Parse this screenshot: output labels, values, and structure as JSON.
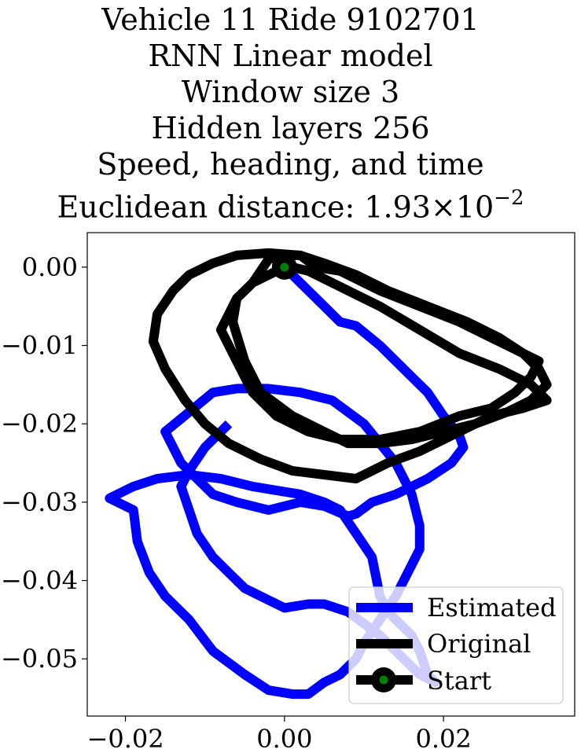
{
  "chart_data": {
    "type": "line",
    "title_lines": [
      "Vehicle 11 Ride 9102701",
      "RNN Linear model",
      "Window size 3",
      "Hidden layers 256",
      "Speed, heading, and time"
    ],
    "title_distance_prefix": "Euclidean distance: 1.93",
    "title_distance_times": "×",
    "title_distance_base": "10",
    "title_distance_exponent": "−2",
    "xlim": [
      -0.0248,
      0.0365
    ],
    "ylim": [
      -0.0573,
      0.0044
    ],
    "xticks": [
      -0.02,
      0.0,
      0.02
    ],
    "xtick_labels": [
      "−0.02",
      "0.00",
      "0.02"
    ],
    "yticks": [
      0.0,
      -0.01,
      -0.02,
      -0.03,
      -0.04,
      -0.05
    ],
    "ytick_labels": [
      "0.00",
      "−0.01",
      "−0.02",
      "−0.03",
      "−0.04",
      "−0.05"
    ],
    "grid": false,
    "legend_position": "lower right",
    "colors": {
      "estimated": "#0000ff",
      "original": "#000000",
      "start_marker": "#000000",
      "start_marker_center": "#008000"
    },
    "series": [
      {
        "name": "Estimated",
        "x": [
          0.0,
          0.004,
          0.007,
          0.009,
          0.012,
          0.015,
          0.018,
          0.02,
          0.022,
          0.0225,
          0.021,
          0.018,
          0.014,
          0.011,
          0.009,
          0.008,
          0.005,
          0.002,
          -0.002,
          -0.006,
          -0.009,
          -0.011,
          -0.013,
          -0.015,
          -0.012,
          -0.009,
          -0.006,
          -0.002,
          0.002,
          0.006,
          0.01,
          0.014,
          0.016,
          0.017,
          0.017,
          0.016,
          0.014,
          0.012,
          0.01,
          0.009,
          0.008,
          0.007,
          0.005,
          0.003,
          0.001,
          -0.002,
          -0.005,
          -0.009,
          -0.012,
          -0.015,
          -0.017,
          -0.0185,
          -0.019,
          -0.021,
          -0.022,
          -0.019,
          -0.016,
          -0.012,
          -0.008,
          -0.004,
          -0.001,
          0.002,
          0.005,
          0.007,
          0.009,
          0.011,
          0.012,
          0.013,
          0.014,
          0.015,
          0.016,
          0.017,
          0.018,
          0.019,
          0.017,
          0.015,
          0.012,
          0.008,
          0.005,
          0.003,
          0.0,
          -0.003,
          -0.005,
          -0.007,
          -0.009,
          -0.011,
          -0.012,
          -0.013,
          -0.012,
          -0.01,
          -0.007
        ],
        "y": [
          0.0,
          -0.004,
          -0.007,
          -0.0075,
          -0.01,
          -0.013,
          -0.016,
          -0.019,
          -0.0215,
          -0.023,
          -0.025,
          -0.027,
          -0.029,
          -0.03,
          -0.0315,
          -0.0318,
          -0.0305,
          -0.03,
          -0.031,
          -0.03,
          -0.029,
          -0.027,
          -0.025,
          -0.021,
          -0.0185,
          -0.016,
          -0.0155,
          -0.0155,
          -0.016,
          -0.017,
          -0.02,
          -0.025,
          -0.029,
          -0.033,
          -0.036,
          -0.038,
          -0.042,
          -0.045,
          -0.048,
          -0.05,
          -0.051,
          -0.052,
          -0.053,
          -0.0545,
          -0.0545,
          -0.054,
          -0.052,
          -0.049,
          -0.045,
          -0.042,
          -0.039,
          -0.035,
          -0.031,
          -0.03,
          -0.0295,
          -0.028,
          -0.027,
          -0.0265,
          -0.027,
          -0.028,
          -0.0285,
          -0.029,
          -0.03,
          -0.031,
          -0.034,
          -0.037,
          -0.042,
          -0.044,
          -0.045,
          -0.046,
          -0.047,
          -0.049,
          -0.052,
          -0.053,
          -0.052,
          -0.05,
          -0.047,
          -0.044,
          -0.043,
          -0.043,
          -0.0435,
          -0.042,
          -0.041,
          -0.039,
          -0.037,
          -0.034,
          -0.031,
          -0.028,
          -0.026,
          -0.023,
          -0.02
        ]
      },
      {
        "name": "Original",
        "x": [
          0.0,
          -0.004,
          -0.006,
          -0.0065,
          -0.005,
          -0.003,
          0.001,
          0.005,
          0.008,
          0.012,
          0.016,
          0.02,
          0.024,
          0.028,
          0.031,
          0.033,
          0.032,
          0.03,
          0.026,
          0.022,
          0.017,
          0.012,
          0.009,
          0.007,
          0.004,
          0.002,
          0.0,
          -0.002,
          -0.004,
          -0.006,
          -0.007,
          -0.008,
          -0.006,
          -0.004,
          -0.001,
          0.003,
          0.007,
          0.012,
          0.017,
          0.022,
          0.026,
          0.029,
          0.031,
          0.032,
          0.03,
          0.027,
          0.023,
          0.018,
          0.013,
          0.009,
          0.005,
          0.002,
          -0.002,
          -0.006,
          -0.009,
          -0.012,
          -0.014,
          -0.016,
          -0.0165,
          -0.015,
          -0.0125,
          -0.01,
          -0.007,
          -0.003,
          0.001,
          0.005,
          0.009,
          0.013,
          0.017,
          0.022,
          0.026,
          0.03,
          0.033,
          0.031,
          0.027,
          0.022,
          0.017,
          0.012,
          0.008,
          0.005,
          0.003,
          0.001,
          0.0
        ],
        "y": [
          0.0,
          -0.002,
          -0.004,
          -0.007,
          -0.012,
          -0.016,
          -0.019,
          -0.021,
          -0.0225,
          -0.0225,
          -0.022,
          -0.021,
          -0.02,
          -0.0185,
          -0.017,
          -0.015,
          -0.013,
          -0.011,
          -0.009,
          -0.007,
          -0.005,
          -0.003,
          -0.0015,
          -0.0005,
          0.0,
          0.0015,
          0.0015,
          0.001,
          -0.002,
          -0.004,
          -0.006,
          -0.008,
          -0.012,
          -0.016,
          -0.019,
          -0.021,
          -0.022,
          -0.022,
          -0.021,
          -0.019,
          -0.018,
          -0.016,
          -0.014,
          -0.012,
          -0.011,
          -0.009,
          -0.007,
          -0.005,
          -0.003,
          -0.001,
          0.0005,
          0.0015,
          0.0018,
          0.0015,
          0.0005,
          -0.001,
          -0.003,
          -0.006,
          -0.0095,
          -0.013,
          -0.017,
          -0.02,
          -0.0225,
          -0.0245,
          -0.026,
          -0.0265,
          -0.027,
          -0.025,
          -0.0235,
          -0.021,
          -0.019,
          -0.018,
          -0.017,
          -0.015,
          -0.013,
          -0.011,
          -0.008,
          -0.005,
          -0.003,
          -0.0015,
          -0.0005,
          0.0,
          0.0
        ]
      },
      {
        "name": "Start",
        "x": [
          0.0
        ],
        "y": [
          0.0
        ]
      }
    ]
  }
}
